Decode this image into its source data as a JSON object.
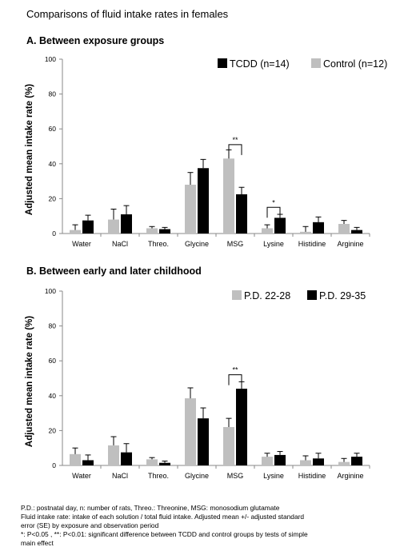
{
  "page_title": "Comparisons of fluid intake rates in females",
  "colors": {
    "gray": "#bfbfbf",
    "black": "#000000",
    "axis": "#888888",
    "grid": "#dddddd"
  },
  "chart_data": [
    {
      "type": "bar",
      "title": "A. Between exposure groups",
      "ylabel": "Adjusted mean intake rate (%)",
      "ylim": [
        0,
        100
      ],
      "yticks": [
        "0",
        "20",
        "40",
        "60",
        "80",
        "100"
      ],
      "grid": false,
      "legend_position": "top-right",
      "categories": [
        "Water",
        "NaCl",
        "Threo.",
        "Glycine",
        "MSG",
        "Lysine",
        "Histidine",
        "Arginine"
      ],
      "series": [
        {
          "name": "Control (n=12)",
          "color": "#bfbfbf",
          "values": [
            2,
            8,
            3,
            28,
            43,
            3,
            1,
            5.5
          ],
          "errors": [
            3,
            6,
            1,
            7,
            5,
            2,
            3,
            2
          ]
        },
        {
          "name": "TCDD (n=14)",
          "color": "#000000",
          "values": [
            7.5,
            11,
            2.5,
            37.5,
            22.5,
            9,
            6.5,
            2
          ],
          "errors": [
            3,
            5,
            1,
            5,
            4,
            2,
            3,
            1.5
          ]
        }
      ],
      "legend_order": [
        "TCDD (n=14)",
        "Control (n=12)"
      ],
      "significance": [
        {
          "category": "MSG",
          "label": "**",
          "top": 51
        },
        {
          "category": "Lysine",
          "label": "*",
          "top": 15
        }
      ]
    },
    {
      "type": "bar",
      "title": "B. Between early and later childhood",
      "ylabel": "Adjusted mean intake rate (%)",
      "ylim": [
        0,
        100
      ],
      "yticks": [
        "0",
        "20",
        "40",
        "60",
        "80",
        "100"
      ],
      "grid": false,
      "legend_position": "top-right",
      "categories": [
        "Water",
        "NaCl",
        "Threo.",
        "Glycine",
        "MSG",
        "Lysine",
        "Histidine",
        "Arginine"
      ],
      "series": [
        {
          "name": "P.D. 22-28",
          "color": "#bfbfbf",
          "values": [
            6.5,
            11.5,
            3.5,
            38.5,
            22,
            5,
            3,
            2
          ],
          "errors": [
            3.5,
            5,
            1,
            6,
            5,
            2,
            2.5,
            2
          ]
        },
        {
          "name": "P.D. 29-35",
          "color": "#000000",
          "values": [
            3,
            7.5,
            1.5,
            27,
            44,
            6,
            4,
            5
          ],
          "errors": [
            3,
            5,
            1,
            6,
            4,
            2,
            3,
            2
          ]
        }
      ],
      "legend_order": [
        "P.D. 22-28",
        "P.D. 29-35"
      ],
      "significance": [
        {
          "category": "MSG",
          "label": "**",
          "top": 52
        }
      ]
    }
  ],
  "notes": [
    "P.D.: postnatal day, n: number of rats, Threo.: Threonine, MSG: monosodium glutamate",
    "Fluid intake rate: intake of each solution / total fluid intake. Adjusted mean +/- adjusted standard",
    "error (SE) by exposure and observation period",
    "*: P<0.05 , **: P<0.01: significant difference between TCDD and control groups by tests of simple",
    "main effect"
  ]
}
